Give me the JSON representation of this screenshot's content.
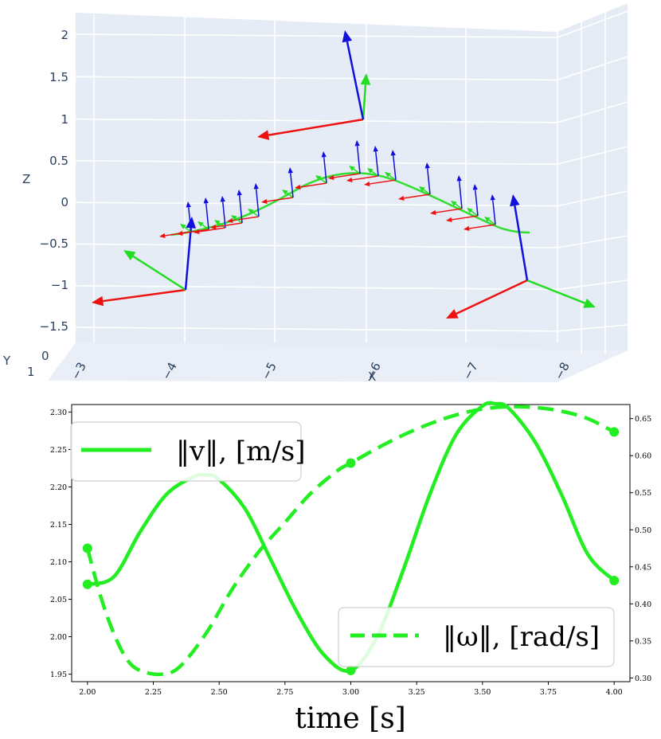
{
  "chart_data": [
    {
      "type": "scatter3d",
      "x_axis": {
        "label": "X",
        "ticks": [
          "−3",
          "−4",
          "−5",
          "−6",
          "−7",
          "−8"
        ],
        "range": [
          -3,
          -8
        ]
      },
      "y_axis": {
        "label": "Y",
        "ticks": [
          "0",
          "1"
        ]
      },
      "z_axis": {
        "label": "Z",
        "ticks": [
          "2",
          "1.5",
          "1",
          "0.5",
          "0",
          "−0.5",
          "−1",
          "−1.5"
        ],
        "range": [
          -1.6,
          2.2
        ]
      },
      "trajectory_color": "#33dd33",
      "frame_colors": {
        "x": "#ee1111",
        "y": "#22dd22",
        "z": "#1010dd"
      },
      "frames": [
        {
          "role": "start",
          "position": [
            -4.0,
            0.0,
            -1.05
          ],
          "scale": "large"
        },
        {
          "role": "waypoint",
          "position": [
            -6.0,
            0.0,
            1.05
          ],
          "scale": "large"
        },
        {
          "role": "end",
          "position": [
            -7.6,
            0.0,
            -1.0
          ],
          "scale": "large"
        }
      ],
      "intermediate_frame_count": 14
    },
    {
      "type": "line",
      "xlabel": "time [s]",
      "x_ticks": [
        "2.00",
        "2.25",
        "2.50",
        "2.75",
        "3.00",
        "3.25",
        "3.50",
        "3.75",
        "4.00"
      ],
      "xlim": [
        1.94,
        4.06
      ],
      "y_left": {
        "ticks": [
          "2.30",
          "2.25",
          "2.20",
          "2.15",
          "2.10",
          "2.05",
          "2.00",
          "1.95"
        ],
        "range": [
          1.94,
          2.31
        ]
      },
      "y_right": {
        "ticks": [
          "0.65",
          "0.60",
          "0.55",
          "0.50",
          "0.45",
          "0.40",
          "0.35",
          "0.30"
        ],
        "range": [
          0.295,
          0.669
        ]
      },
      "series": [
        {
          "name": "‖v‖, [m/s]",
          "axis": "left",
          "style": "solid",
          "color": "#22ee22",
          "x": [
            2.0,
            2.1,
            2.2,
            2.3,
            2.4,
            2.45,
            2.5,
            2.6,
            2.7,
            2.8,
            2.9,
            3.0,
            3.1,
            3.2,
            3.3,
            3.4,
            3.5,
            3.55,
            3.6,
            3.7,
            3.8,
            3.9,
            4.0
          ],
          "values": [
            2.07,
            2.08,
            2.14,
            2.19,
            2.213,
            2.216,
            2.21,
            2.17,
            2.1,
            2.03,
            1.975,
            1.955,
            2.0,
            2.09,
            2.19,
            2.27,
            2.308,
            2.311,
            2.305,
            2.26,
            2.19,
            2.11,
            2.075
          ],
          "markers_at": [
            2.0,
            3.0,
            4.0
          ]
        },
        {
          "name": "‖ω‖, [rad/s]",
          "axis": "right",
          "style": "dashed",
          "color": "#22ee22",
          "x": [
            2.0,
            2.05,
            2.1,
            2.15,
            2.2,
            2.28,
            2.35,
            2.45,
            2.55,
            2.65,
            2.75,
            2.85,
            2.95,
            3.0,
            3.1,
            3.2,
            3.3,
            3.4,
            3.5,
            3.6,
            3.7,
            3.8,
            3.9,
            4.0
          ],
          "values": [
            0.475,
            0.41,
            0.36,
            0.325,
            0.31,
            0.305,
            0.315,
            0.36,
            0.42,
            0.47,
            0.51,
            0.55,
            0.58,
            0.59,
            0.61,
            0.628,
            0.643,
            0.655,
            0.663,
            0.666,
            0.665,
            0.66,
            0.65,
            0.632
          ],
          "markers_at": [
            2.0,
            3.0,
            4.0
          ]
        }
      ],
      "legend": [
        {
          "label": "‖v‖, [m/s]",
          "placement": "top-left"
        },
        {
          "label": "‖ω‖, [rad/s]",
          "placement": "bottom-right"
        }
      ]
    }
  ]
}
